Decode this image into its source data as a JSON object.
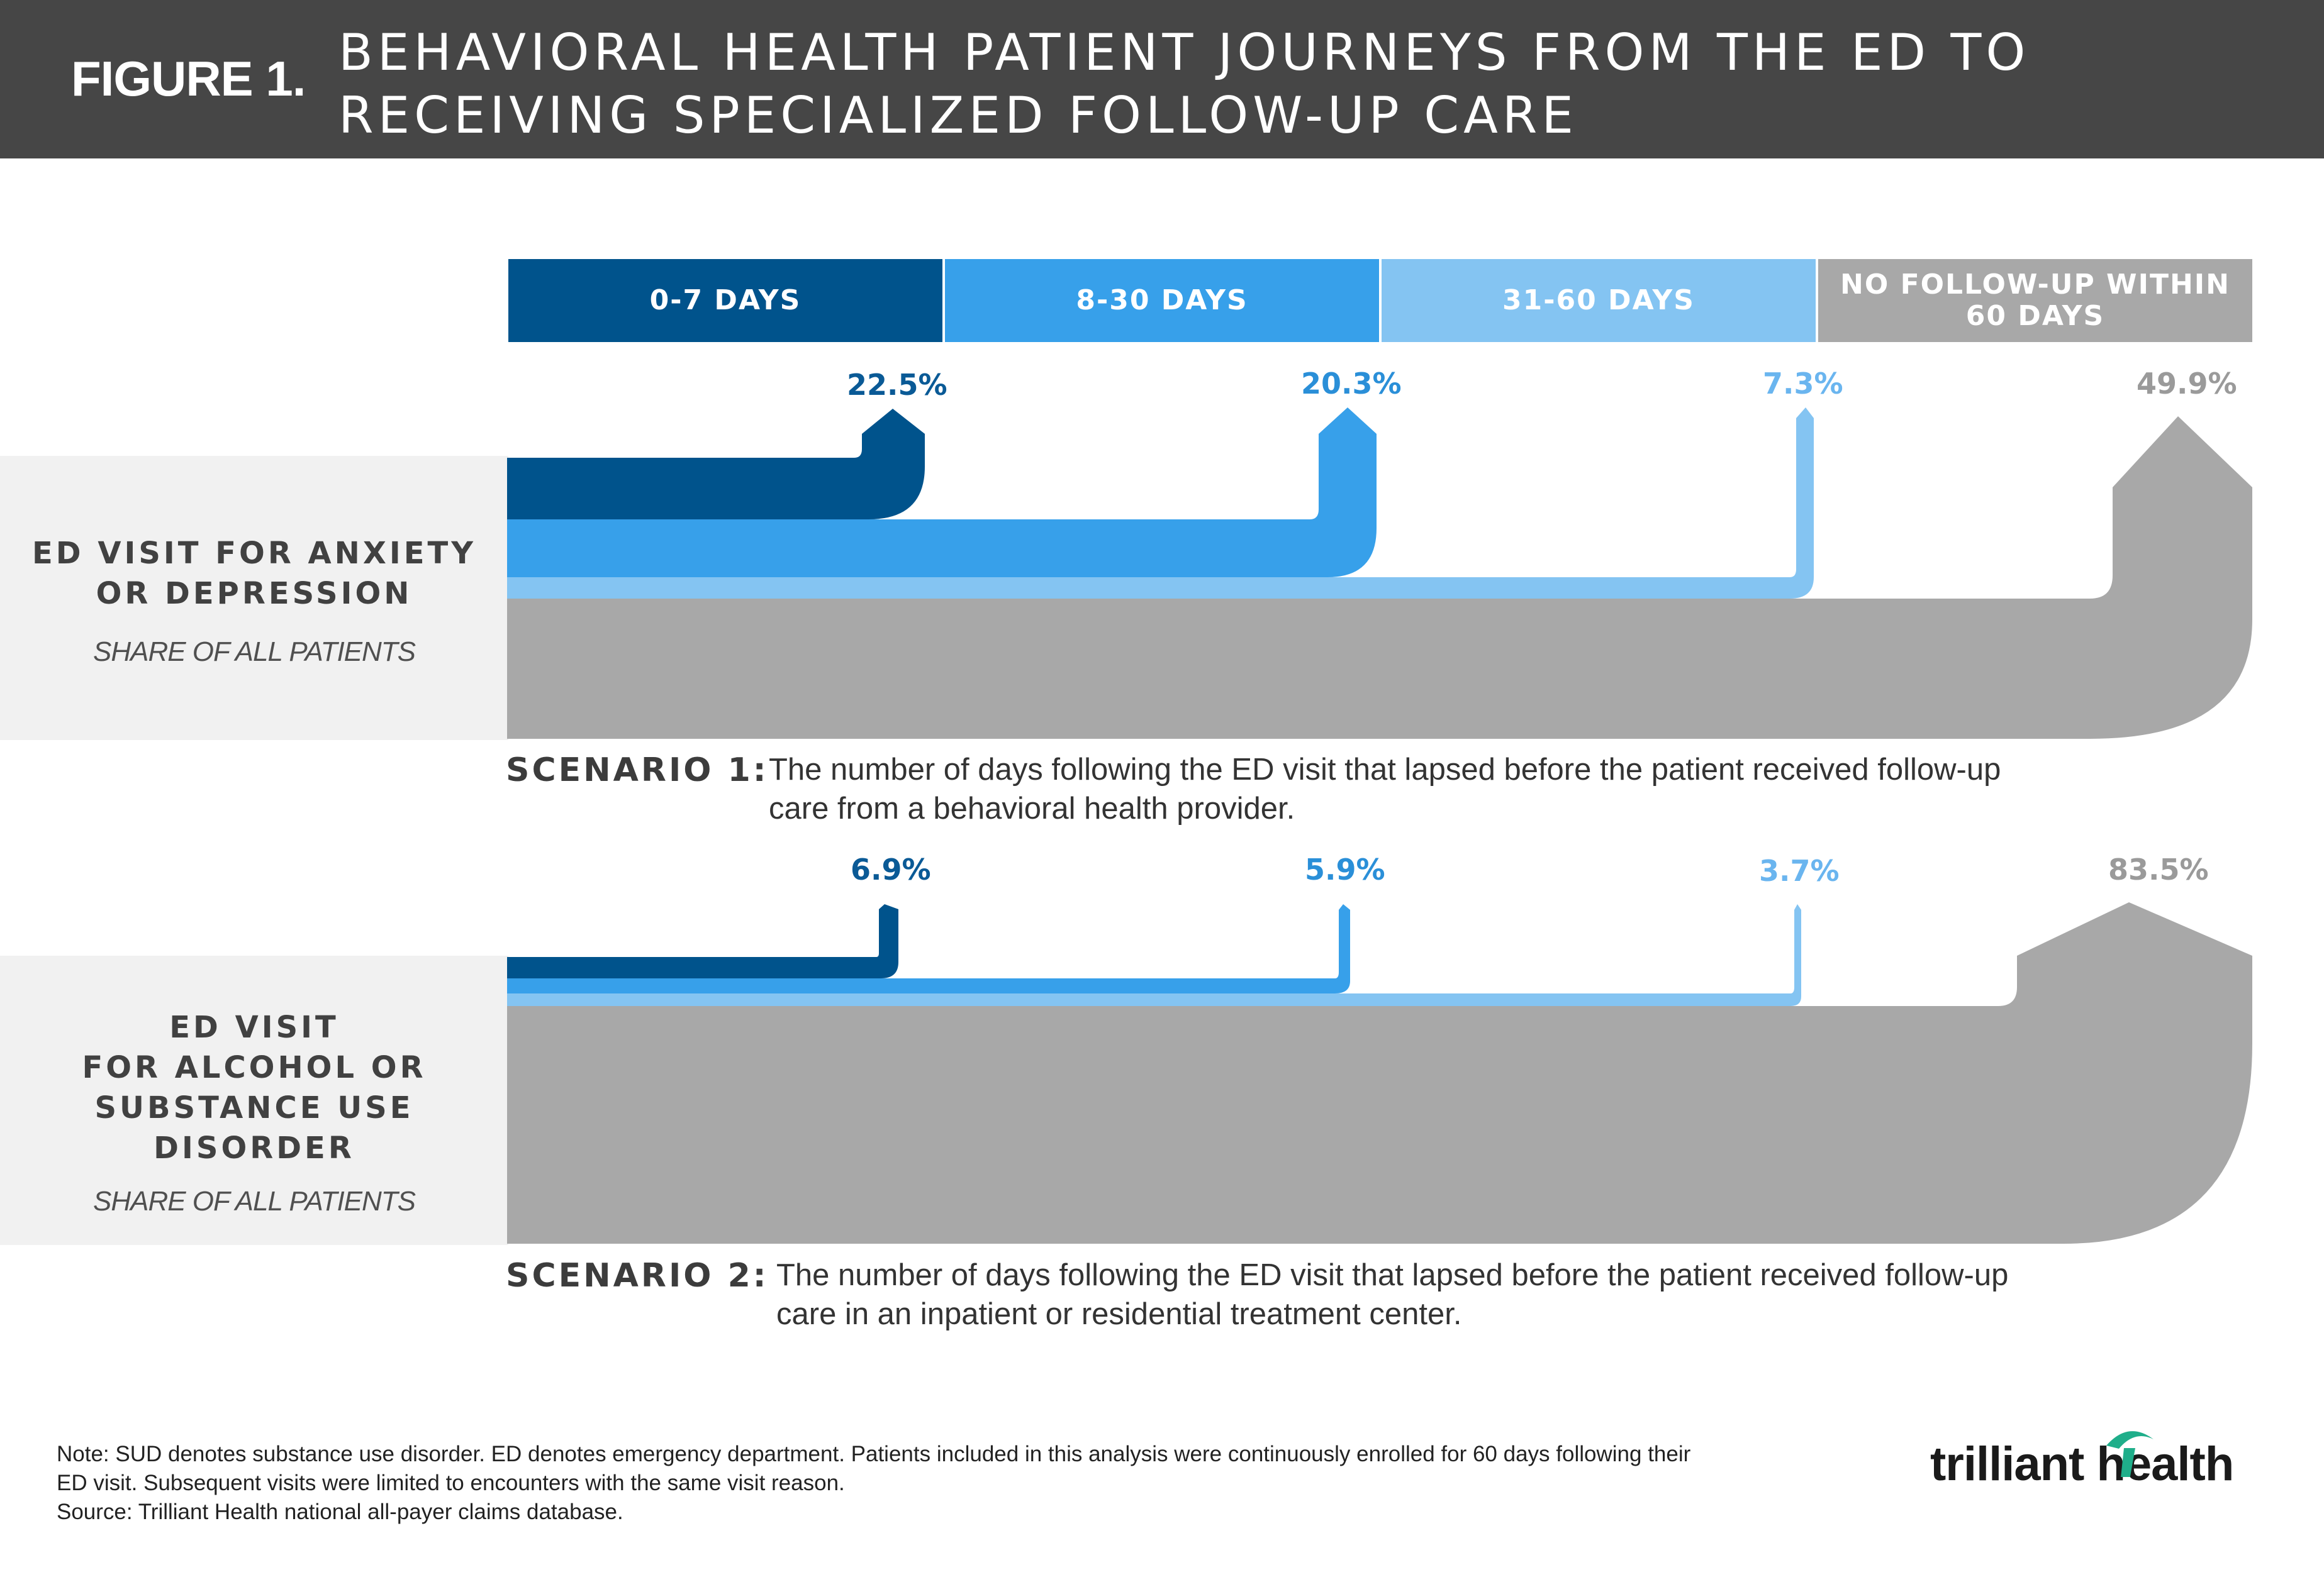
{
  "header": {
    "figure_label": "FIGURE 1.",
    "title_line1": "BEHAVIORAL HEALTH PATIENT JOURNEYS FROM THE ED TO",
    "title_line2": "RECEIVING SPECIALIZED FOLLOW-UP CARE"
  },
  "legend": [
    {
      "label": "0-7 DAYS",
      "color": "#00538c"
    },
    {
      "label": "8-30 DAYS",
      "color": "#37a0ea"
    },
    {
      "label": "31-60 DAYS",
      "color": "#84c4f2"
    },
    {
      "label_line1": "NO FOLLOW-UP WITHIN",
      "label_line2": "60 DAYS",
      "color": "#a8a8a8"
    }
  ],
  "panels": [
    {
      "title_line1": "ED VISIT FOR ANXIETY",
      "title_line2": "OR DEPRESSION",
      "subtitle": "SHARE OF ALL PATIENTS"
    },
    {
      "title_line1": "ED VISIT",
      "title_line2": "FOR ALCOHOL OR",
      "title_line3": "SUBSTANCE USE",
      "title_line4": "DISORDER",
      "subtitle": "SHARE OF ALL PATIENTS"
    }
  ],
  "scenarios": [
    {
      "label": "SCENARIO 1:",
      "desc_line1": "The number of days following the ED visit that lapsed before the patient received follow-up",
      "desc_line2": "care from a behavioral health provider."
    },
    {
      "label": "SCENARIO 2:",
      "desc_line1": "The number of days following the ED visit that lapsed before the patient received follow-up",
      "desc_line2": "care in an inpatient or residential treatment center."
    }
  ],
  "chart_data": [
    {
      "type": "bar",
      "categories": [
        "0-7 DAYS",
        "8-30 DAYS",
        "31-60 DAYS",
        "NO FOLLOW-UP WITHIN 60 DAYS"
      ],
      "values": [
        22.5,
        20.3,
        7.3,
        49.9
      ],
      "labels": [
        "22.5%",
        "20.3%",
        "7.3%",
        "49.9%"
      ]
    },
    {
      "type": "bar",
      "categories": [
        "0-7 DAYS",
        "8-30 DAYS",
        "31-60 DAYS",
        "NO FOLLOW-UP WITHIN 60 DAYS"
      ],
      "values": [
        6.9,
        5.9,
        3.7,
        83.5
      ],
      "labels": [
        "6.9%",
        "5.9%",
        "3.7%",
        "83.5%"
      ]
    }
  ],
  "colors": [
    "#00538c",
    "#37a0ea",
    "#84c4f2",
    "#a8a8a8"
  ],
  "footer": {
    "note_line1": "Note: SUD denotes substance use disorder. ED denotes emergency department. Patients included in this analysis were continuously enrolled for 60 days following their",
    "note_line2": "ED visit. Subsequent visits were limited to encounters with the same visit reason.",
    "note_line3": "Source: Trilliant Health national all-payer claims database.",
    "logo_text": "trilliant health"
  }
}
